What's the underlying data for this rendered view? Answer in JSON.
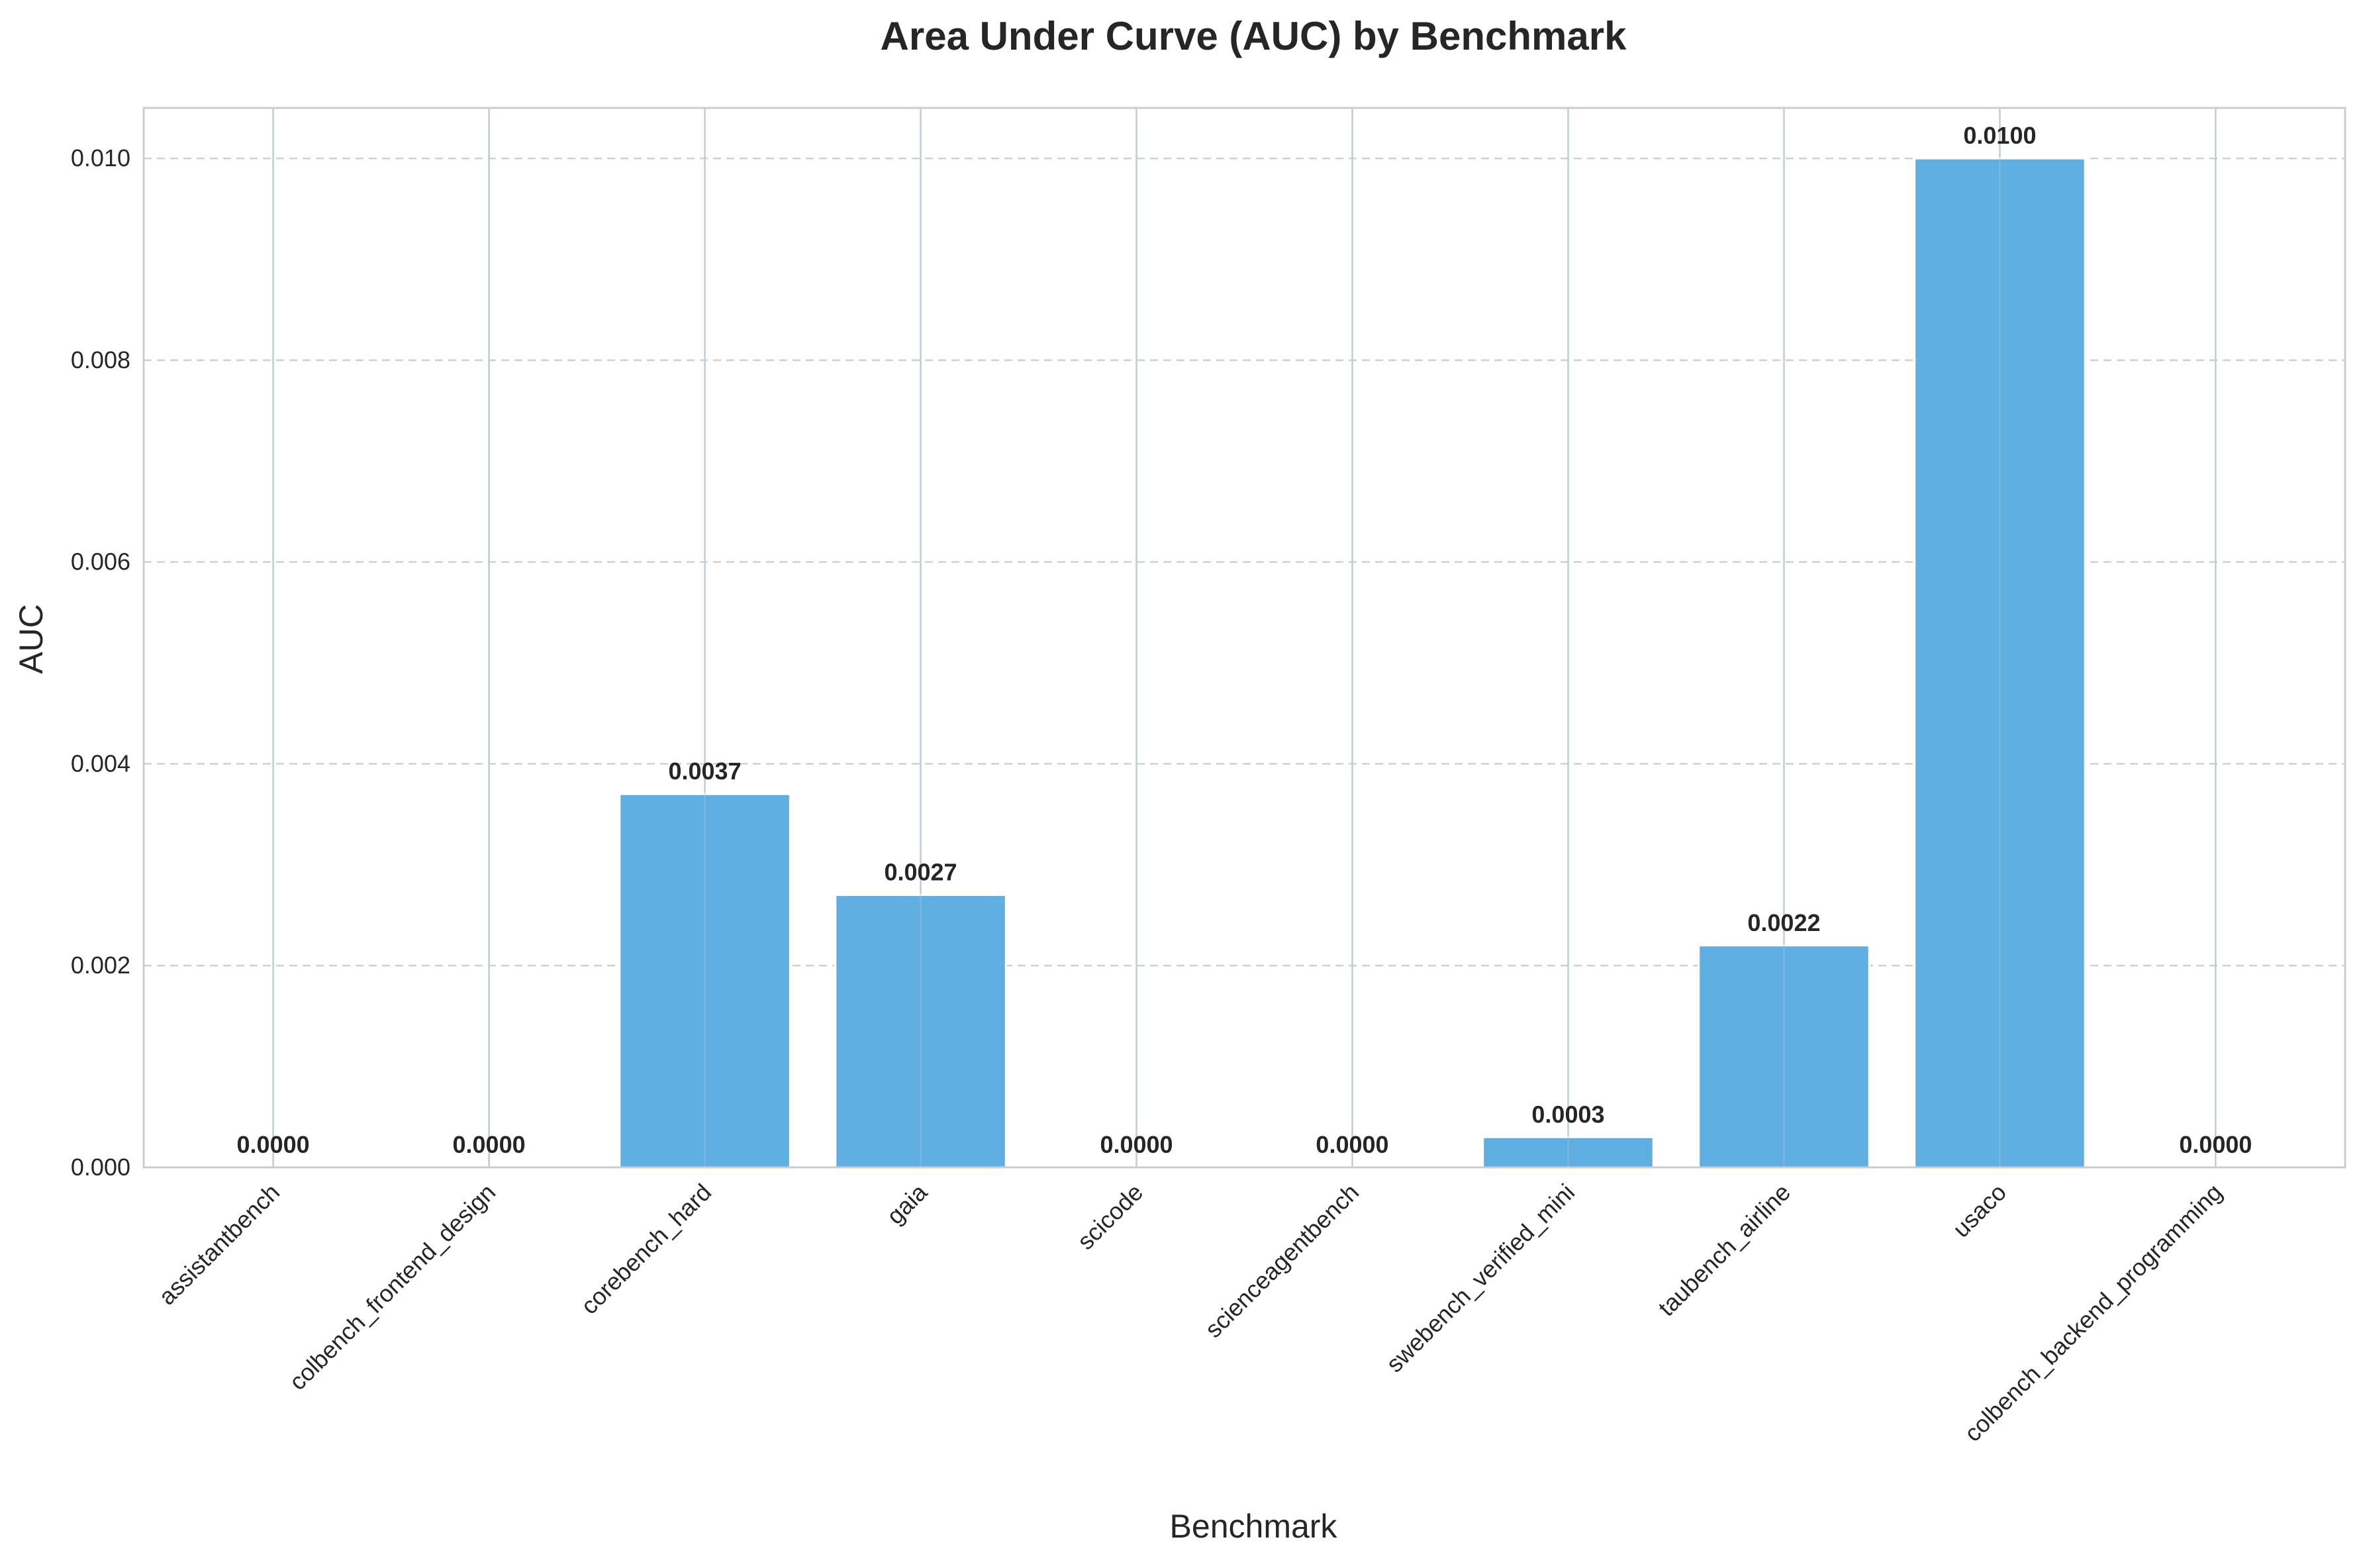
{
  "chart_data": {
    "type": "bar",
    "title": "Area Under Curve (AUC) by Benchmark",
    "xlabel": "Benchmark",
    "ylabel": "AUC",
    "categories": [
      "assistantbench",
      "colbench_frontend_design",
      "corebench_hard",
      "gaia",
      "scicode",
      "scienceagentbench",
      "swebench_verified_mini",
      "taubench_airline",
      "usaco",
      "colbench_backend_programming"
    ],
    "values": [
      0.0,
      0.0,
      0.0037,
      0.0027,
      0.0,
      0.0,
      0.0003,
      0.0022,
      0.01,
      0.0
    ],
    "value_labels": [
      "0.0000",
      "0.0000",
      "0.0037",
      "0.0027",
      "0.0000",
      "0.0000",
      "0.0003",
      "0.0022",
      "0.0100",
      "0.0000"
    ],
    "ylim": [
      0,
      0.0105
    ],
    "yticks": [
      0.0,
      0.002,
      0.004,
      0.006,
      0.008,
      0.01
    ],
    "ytick_labels": [
      "0.000",
      "0.002",
      "0.004",
      "0.006",
      "0.008",
      "0.010"
    ],
    "grid": true,
    "bar_color": "#5DADE2",
    "bar_edge_color": "#ffffff"
  }
}
